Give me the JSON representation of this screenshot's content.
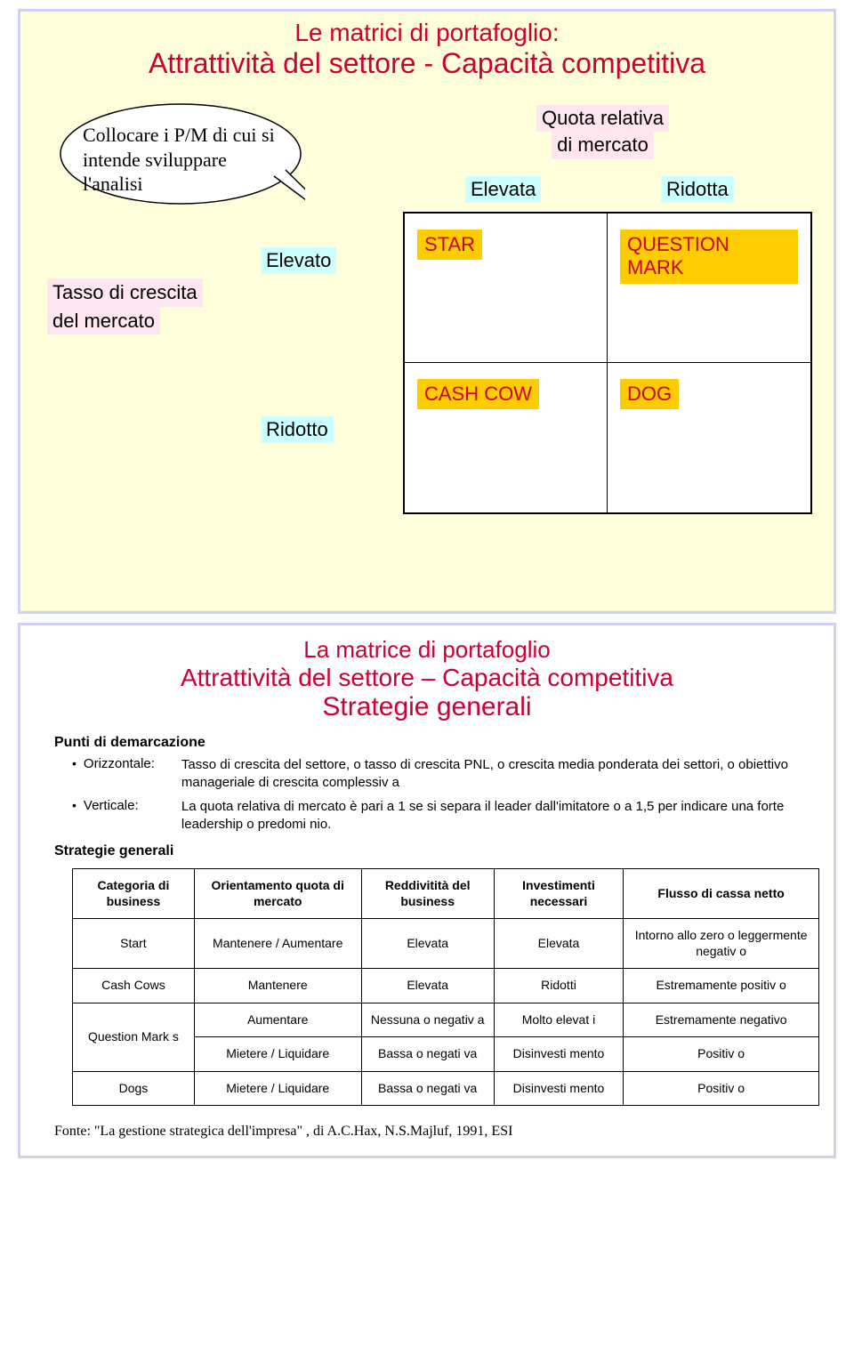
{
  "slide1": {
    "title_line1": "Le matrici di portafoglio:",
    "title_line2": "Attrattività del settore - Capacità competitiva",
    "speech_bubble": "Collocare i P/M di cui si intende sviluppare l'analisi",
    "market_share_label_l1": "Quota relativa",
    "market_share_label_l2": "di mercato",
    "col_elevata": "Elevata",
    "col_ridotta": "Ridotta",
    "growth_label_l1": "Tasso di crescita",
    "growth_label_l2": "del mercato",
    "row_elevato": "Elevato",
    "row_ridotto": "Ridotto",
    "quadrants": {
      "star": "STAR",
      "question": "QUESTION MARK",
      "cashcow": "CASH COW",
      "dog": "DOG"
    },
    "colors": {
      "slide_bg": "#ffffdc",
      "title_color": "#cc0033",
      "cyan_hl": "#ccffff",
      "pink_hl": "#ffe6f0",
      "yellow_hl": "#ffcc00",
      "red_text": "#cc0033"
    }
  },
  "slide2": {
    "title1": "La matrice di portafoglio",
    "title2": "Attrattività del settore – Capacità competitiva",
    "title3": "Strategie generali",
    "punti_head": "Punti di demarcazione",
    "orizzontale_lbl": "Orizzontale:",
    "orizzontale_desc": "Tasso di crescita del settore, o tasso di crescita PNL, o crescita media ponderata dei settori, o obiettivo manageriale di crescita complessiv a",
    "verticale_lbl": "Verticale:",
    "verticale_desc": "La quota relativa di mercato è pari a 1 se si separa il leader dall'imitatore o a 1,5 per indicare una forte leadership o predomi nio.",
    "strategie_head": "Strategie generali",
    "table": {
      "headers": [
        "Categoria di  business",
        "Orientamento quota di mercato",
        "Reddivitità del business",
        "Investimenti necessari",
        "Flusso di cassa netto"
      ],
      "rows": [
        {
          "sep": true,
          "cells": [
            "Start",
            "Mantenere  / Aumentare",
            "Elevata",
            "Elevata",
            "Intorno allo zero o leggermente negativ o"
          ]
        },
        {
          "sep": true,
          "cells": [
            "Cash Cows",
            "Mantenere",
            "Elevata",
            "Ridotti",
            "Estremamente positiv o"
          ]
        },
        {
          "sep": true,
          "rowspan": 2,
          "cells": [
            "Question Mark s",
            "Aumentare",
            "Nessuna o negativ a",
            "Molto elevat i",
            "Estremamente negativo"
          ]
        },
        {
          "sep": false,
          "cells": [
            "Mietere  / Liquidare",
            "Bassa o negati va",
            "Disinvesti mento",
            "Positiv o"
          ]
        },
        {
          "sep": true,
          "cells": [
            "Dogs",
            "Mietere  / Liquidare",
            "Bassa o negati va",
            "Disinvesti mento",
            "Positiv o"
          ]
        }
      ]
    },
    "source": "Fonte: \"La gestione strategica dell'impresa\" , di A.C.Hax, N.S.Majluf, 1991,  ESI"
  }
}
